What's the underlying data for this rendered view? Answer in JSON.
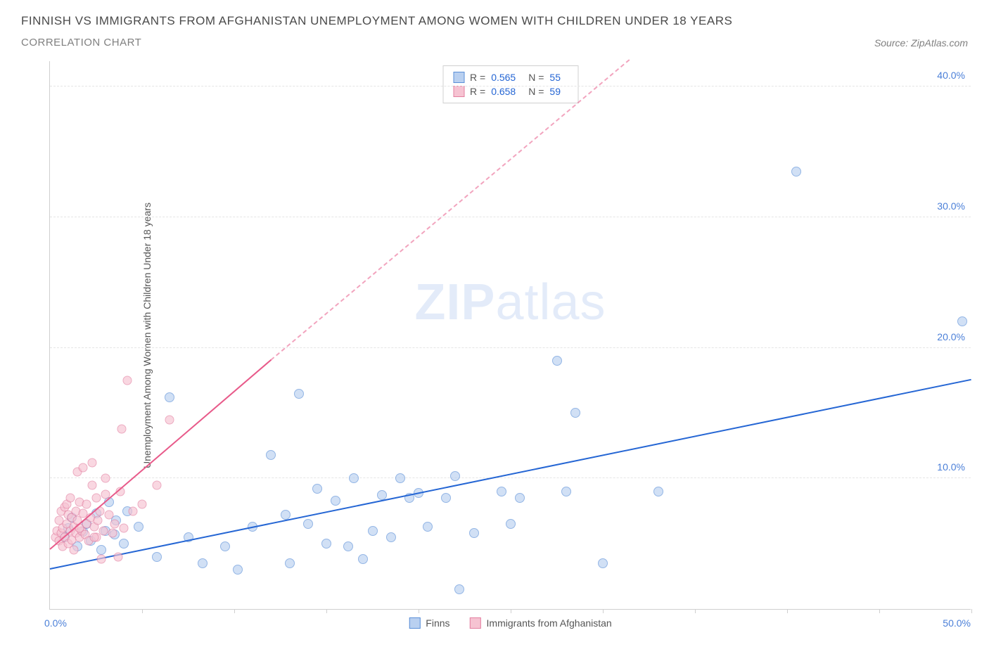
{
  "header": {
    "title": "FINNISH VS IMMIGRANTS FROM AFGHANISTAN UNEMPLOYMENT AMONG WOMEN WITH CHILDREN UNDER 18 YEARS",
    "subtitle": "CORRELATION CHART",
    "source_prefix": "Source: ",
    "source_name": "ZipAtlas.com"
  },
  "chart": {
    "type": "scatter",
    "ylabel": "Unemployment Among Women with Children Under 18 years",
    "xlim": [
      0,
      50
    ],
    "ylim": [
      0,
      42
    ],
    "xtick_positions": [
      5,
      10,
      15,
      20,
      25,
      30,
      35,
      40,
      45,
      50
    ],
    "ytick_positions": [
      10,
      20,
      30,
      40
    ],
    "ytick_labels": [
      "10.0%",
      "20.0%",
      "30.0%",
      "40.0%"
    ],
    "origin_label": "0.0%",
    "xmax_label": "50.0%",
    "background_color": "#ffffff",
    "grid_color": "#e5e5e5",
    "axis_color": "#cfcfcf",
    "tick_label_color": "#4a7fd8",
    "watermark": {
      "bold": "ZIP",
      "rest": "atlas"
    },
    "stats": [
      {
        "swatch_fill": "#b9d0f0",
        "swatch_border": "#5a8fd8",
        "r_label": "R =",
        "r": "0.565",
        "n_label": "N =",
        "n": "55"
      },
      {
        "swatch_fill": "#f6c3d2",
        "swatch_border": "#e37fa0",
        "r_label": "R =",
        "r": "0.658",
        "n_label": "N =",
        "n": "59"
      }
    ],
    "legend": [
      {
        "swatch_fill": "#b9d0f0",
        "swatch_border": "#5a8fd8",
        "label": "Finns"
      },
      {
        "swatch_fill": "#f6c3d2",
        "swatch_border": "#e37fa0",
        "label": "Immigrants from Afghanistan"
      }
    ],
    "series": [
      {
        "name": "Finns",
        "marker_fill": "#b9d0f0",
        "marker_border": "#5a8fd8",
        "marker_opacity": 0.65,
        "marker_size": 14,
        "trend": {
          "color": "#2566d4",
          "x1": 0,
          "y1": 3.0,
          "x2": 50,
          "y2": 17.5,
          "dash_after_x": 50
        },
        "points": [
          [
            0.8,
            5.5
          ],
          [
            1.0,
            6.2
          ],
          [
            1.2,
            7.0
          ],
          [
            1.5,
            4.8
          ],
          [
            1.8,
            5.9
          ],
          [
            2.0,
            6.5
          ],
          [
            2.2,
            5.2
          ],
          [
            2.5,
            7.3
          ],
          [
            2.8,
            4.5
          ],
          [
            3.0,
            6.0
          ],
          [
            3.2,
            8.2
          ],
          [
            3.5,
            5.7
          ],
          [
            3.6,
            6.8
          ],
          [
            4.0,
            5.0
          ],
          [
            4.2,
            7.5
          ],
          [
            4.8,
            6.3
          ],
          [
            5.8,
            4.0
          ],
          [
            6.5,
            16.2
          ],
          [
            7.5,
            5.5
          ],
          [
            8.3,
            3.5
          ],
          [
            9.5,
            4.8
          ],
          [
            10.2,
            3.0
          ],
          [
            11.0,
            6.3
          ],
          [
            12.0,
            11.8
          ],
          [
            13.0,
            3.5
          ],
          [
            13.5,
            16.5
          ],
          [
            14.0,
            6.5
          ],
          [
            15.0,
            5.0
          ],
          [
            15.5,
            8.3
          ],
          [
            16.2,
            4.8
          ],
          [
            16.5,
            10.0
          ],
          [
            17.0,
            3.8
          ],
          [
            18.0,
            8.7
          ],
          [
            18.5,
            5.5
          ],
          [
            19.0,
            10.0
          ],
          [
            19.5,
            8.5
          ],
          [
            20.5,
            6.3
          ],
          [
            21.5,
            8.5
          ],
          [
            22.0,
            10.2
          ],
          [
            22.2,
            1.5
          ],
          [
            23.0,
            5.8
          ],
          [
            24.5,
            9.0
          ],
          [
            25.5,
            8.5
          ],
          [
            27.5,
            19.0
          ],
          [
            28.0,
            9.0
          ],
          [
            28.5,
            15.0
          ],
          [
            30.0,
            3.5
          ],
          [
            33.0,
            9.0
          ],
          [
            40.5,
            33.5
          ],
          [
            49.5,
            22.0
          ],
          [
            17.5,
            6.0
          ],
          [
            12.8,
            7.2
          ],
          [
            20.0,
            8.9
          ],
          [
            14.5,
            9.2
          ],
          [
            25.0,
            6.5
          ]
        ]
      },
      {
        "name": "Immigrants from Afghanistan",
        "marker_fill": "#f6c3d2",
        "marker_border": "#e37fa0",
        "marker_opacity": 0.65,
        "marker_size": 13,
        "trend": {
          "color": "#e85a8a",
          "x1": 0,
          "y1": 4.5,
          "x2": 12,
          "y2": 19.0,
          "dash_after_x": 12,
          "dash_x2": 34,
          "dash_y2": 45
        },
        "points": [
          [
            0.3,
            5.5
          ],
          [
            0.4,
            6.0
          ],
          [
            0.5,
            5.2
          ],
          [
            0.5,
            6.8
          ],
          [
            0.6,
            5.8
          ],
          [
            0.6,
            7.5
          ],
          [
            0.7,
            6.2
          ],
          [
            0.7,
            4.8
          ],
          [
            0.8,
            7.8
          ],
          [
            0.8,
            5.5
          ],
          [
            0.9,
            6.5
          ],
          [
            0.9,
            8.0
          ],
          [
            1.0,
            5.0
          ],
          [
            1.0,
            7.2
          ],
          [
            1.1,
            6.0
          ],
          [
            1.1,
            8.5
          ],
          [
            1.2,
            5.3
          ],
          [
            1.2,
            7.0
          ],
          [
            1.3,
            6.3
          ],
          [
            1.3,
            4.5
          ],
          [
            1.4,
            7.5
          ],
          [
            1.4,
            5.8
          ],
          [
            1.5,
            6.8
          ],
          [
            1.5,
            10.5
          ],
          [
            1.6,
            5.5
          ],
          [
            1.6,
            8.2
          ],
          [
            1.7,
            6.0
          ],
          [
            1.8,
            7.3
          ],
          [
            1.8,
            10.8
          ],
          [
            1.9,
            5.7
          ],
          [
            2.0,
            6.5
          ],
          [
            2.0,
            8.0
          ],
          [
            2.1,
            5.2
          ],
          [
            2.2,
            7.0
          ],
          [
            2.3,
            9.5
          ],
          [
            2.3,
            11.2
          ],
          [
            2.4,
            6.3
          ],
          [
            2.5,
            5.5
          ],
          [
            2.5,
            8.5
          ],
          [
            2.6,
            6.8
          ],
          [
            2.7,
            7.5
          ],
          [
            2.8,
            3.8
          ],
          [
            2.9,
            6.0
          ],
          [
            3.0,
            8.8
          ],
          [
            3.0,
            10.0
          ],
          [
            3.2,
            7.2
          ],
          [
            3.4,
            5.8
          ],
          [
            3.5,
            6.5
          ],
          [
            3.7,
            4.0
          ],
          [
            3.8,
            9.0
          ],
          [
            4.0,
            6.2
          ],
          [
            4.5,
            7.5
          ],
          [
            5.0,
            8.0
          ],
          [
            5.8,
            9.5
          ],
          [
            4.2,
            17.5
          ],
          [
            6.5,
            14.5
          ],
          [
            3.9,
            13.8
          ],
          [
            1.6,
            6.2
          ],
          [
            2.4,
            5.5
          ]
        ]
      }
    ]
  }
}
